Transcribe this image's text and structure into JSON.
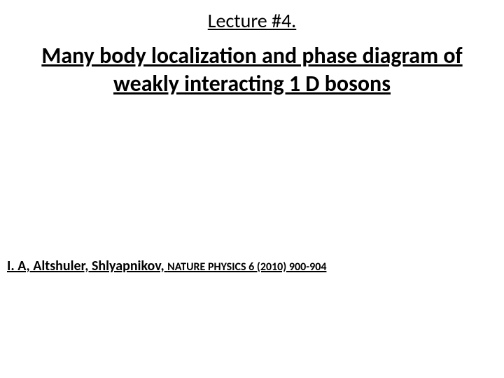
{
  "slide": {
    "lecture_number": "Lecture #4.",
    "title": "Many body localization and phase diagram of weakly interacting 1 D bosons",
    "citation_authors": "I. A, Altshuler, Shlyapnikov,",
    "citation_journal": "NATURE PHYSICS  6   (2010) 900-904",
    "background_color": "#ffffff",
    "text_color": "#000000",
    "lecture_fontsize": 28,
    "title_fontsize": 32,
    "citation_fontsize": 20,
    "citation_journal_fontsize": 16
  }
}
